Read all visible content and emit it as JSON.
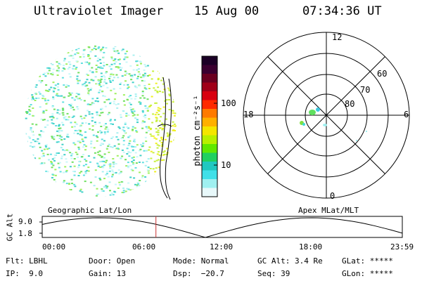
{
  "header": {
    "instrument": "Ultraviolet Imager",
    "date": "15 Aug 00",
    "time": "07:34:36 UT"
  },
  "colorbar": {
    "unit_label": "photon cm⁻²s⁻¹",
    "ticks": [
      "100",
      "10"
    ],
    "colors": [
      "#1b0026",
      "#3a0030",
      "#6a0020",
      "#a00018",
      "#d80010",
      "#ff2a00",
      "#ff7a00",
      "#ffb000",
      "#f4e600",
      "#b8f000",
      "#60e800",
      "#20d060",
      "#20c8c0",
      "#40e0e8",
      "#9ff0f0",
      "#e8f8fa"
    ]
  },
  "polar_plot": {
    "mlt_labels": {
      "top": "12",
      "left": "18",
      "right": "6",
      "bottom": "0"
    },
    "lat_labels": [
      "80",
      "70",
      "60"
    ]
  },
  "timeline": {
    "titles": {
      "left": "Geographic Lat/Lon",
      "right": "Apex MLat/MLT"
    },
    "y_axis_label": "GC Alt",
    "y_ticks": [
      "9.0",
      "1.8"
    ],
    "x_ticks": [
      "00:00",
      "06:00",
      "12:00",
      "18:00",
      "23:59"
    ],
    "current_time_hours": 7.58,
    "marker_color": "#c83232"
  },
  "footer": {
    "flt": "Flt: LBHL",
    "ip": "IP:  9.0",
    "door": "Door: Open",
    "gain": "Gain: 13",
    "mode": "Mode: Normal",
    "dsp": "Dsp:  −20.7",
    "gc_alt": "GC Alt: 3.4 Re",
    "seq": "Seq: 39",
    "glat": "GLat: *****",
    "glon": "GLon: *****"
  }
}
